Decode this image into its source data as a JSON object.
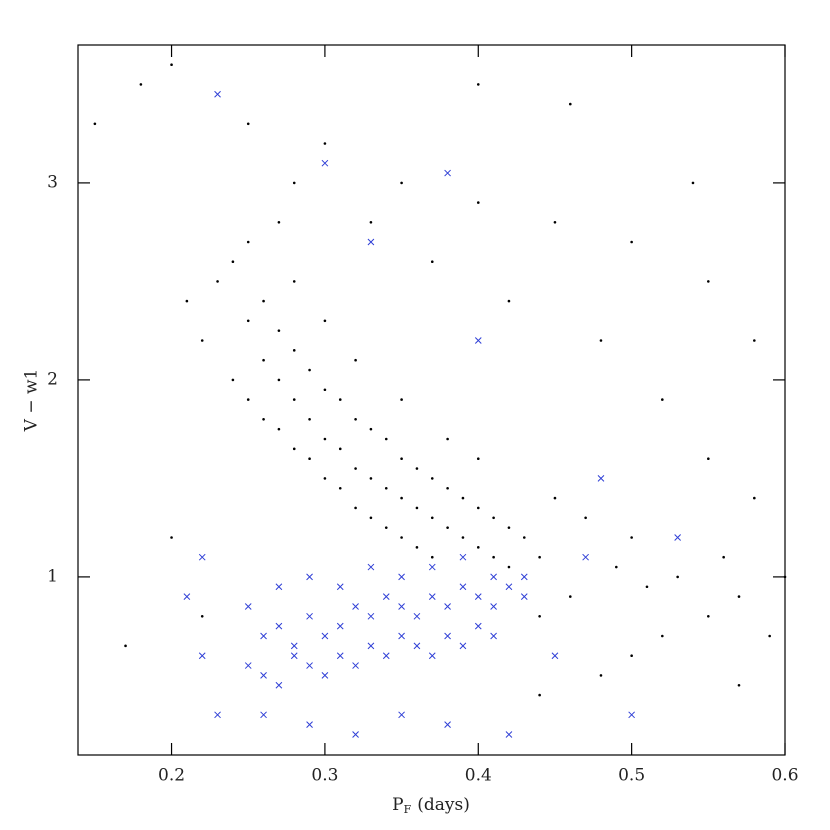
{
  "chart_data": {
    "type": "scatter",
    "x_label": {
      "text": "P",
      "subscript": "F",
      "suffix": "(days)"
    },
    "y_label": "V − w1",
    "xlim": [
      0.139,
      0.6
    ],
    "ylim": [
      0.096,
      3.7
    ],
    "xticks": [
      0.2,
      0.3,
      0.4,
      0.5,
      0.6
    ],
    "yticks": [
      1,
      2,
      3
    ],
    "series": [
      {
        "color": "#000000",
        "marker": "dot",
        "x": [
          0.26,
          0.27,
          0.28,
          0.29,
          0.3,
          0.31,
          0.32,
          0.33,
          0.34,
          0.35,
          0.36,
          0.37,
          0.38,
          0.39,
          0.4,
          0.41,
          0.42,
          0.25,
          0.26,
          0.27,
          0.28,
          0.29,
          0.3,
          0.31,
          0.32,
          0.33,
          0.34,
          0.35,
          0.36,
          0.37,
          0.38,
          0.39,
          0.4,
          0.41,
          0.42,
          0.43,
          0.44,
          0.24,
          0.25,
          0.26,
          0.27,
          0.28,
          0.29,
          0.3,
          0.31,
          0.32,
          0.33,
          0.34,
          0.35,
          0.36,
          0.37,
          0.23,
          0.24,
          0.25,
          0.27,
          0.22,
          0.21,
          0.28,
          0.3,
          0.32,
          0.35,
          0.38,
          0.4,
          0.45,
          0.47,
          0.5,
          0.18,
          0.2,
          0.25,
          0.3,
          0.35,
          0.4,
          0.45,
          0.5,
          0.55,
          0.58,
          0.48,
          0.52,
          0.55,
          0.58,
          0.6,
          0.57,
          0.55,
          0.52,
          0.5,
          0.48,
          0.53,
          0.56,
          0.59,
          0.46,
          0.44,
          0.17,
          0.2,
          0.22,
          0.42,
          0.37,
          0.33,
          0.28,
          0.15,
          0.46,
          0.4,
          0.54,
          0.51,
          0.49,
          0.57,
          0.44
        ],
        "values": [
          2.1,
          2.0,
          1.9,
          1.8,
          1.7,
          1.65,
          1.55,
          1.5,
          1.45,
          1.4,
          1.35,
          1.3,
          1.25,
          1.2,
          1.15,
          1.1,
          1.05,
          2.3,
          2.4,
          2.25,
          2.15,
          2.05,
          1.95,
          1.9,
          1.8,
          1.75,
          1.7,
          1.6,
          1.55,
          1.5,
          1.45,
          1.4,
          1.35,
          1.3,
          1.25,
          1.2,
          1.1,
          2.0,
          1.9,
          1.8,
          1.75,
          1.65,
          1.6,
          1.5,
          1.45,
          1.35,
          1.3,
          1.25,
          1.2,
          1.15,
          1.1,
          2.5,
          2.6,
          2.7,
          2.8,
          2.2,
          2.4,
          2.5,
          2.3,
          2.1,
          1.9,
          1.7,
          1.6,
          1.4,
          1.3,
          1.2,
          3.5,
          3.6,
          3.3,
          3.2,
          3.0,
          2.9,
          2.8,
          2.7,
          2.5,
          2.2,
          2.2,
          1.9,
          1.6,
          1.4,
          1.0,
          0.9,
          0.8,
          0.7,
          0.6,
          0.5,
          1.0,
          1.1,
          0.7,
          0.9,
          0.8,
          0.65,
          1.2,
          0.8,
          2.4,
          2.6,
          2.8,
          3.0,
          3.3,
          3.4,
          3.5,
          3.0,
          0.95,
          1.05,
          0.45,
          0.4
        ]
      },
      {
        "color": "#2f3fd6",
        "marker": "cross",
        "x": [
          0.26,
          0.27,
          0.28,
          0.29,
          0.3,
          0.31,
          0.32,
          0.33,
          0.34,
          0.35,
          0.36,
          0.37,
          0.38,
          0.39,
          0.4,
          0.41,
          0.42,
          0.43,
          0.25,
          0.26,
          0.27,
          0.28,
          0.29,
          0.3,
          0.31,
          0.32,
          0.33,
          0.34,
          0.35,
          0.36,
          0.37,
          0.38,
          0.39,
          0.4,
          0.41,
          0.25,
          0.27,
          0.29,
          0.31,
          0.33,
          0.35,
          0.37,
          0.39,
          0.41,
          0.43,
          0.23,
          0.26,
          0.29,
          0.32,
          0.35,
          0.38,
          0.42,
          0.22,
          0.21,
          0.22,
          0.3,
          0.38,
          0.23,
          0.48,
          0.5,
          0.45,
          0.47,
          0.53,
          0.33,
          0.4
        ],
        "values": [
          0.7,
          0.75,
          0.65,
          0.8,
          0.7,
          0.75,
          0.85,
          0.8,
          0.9,
          0.85,
          0.8,
          0.9,
          0.85,
          0.95,
          0.9,
          0.85,
          0.95,
          0.9,
          0.55,
          0.5,
          0.45,
          0.6,
          0.55,
          0.5,
          0.6,
          0.55,
          0.65,
          0.6,
          0.7,
          0.65,
          0.6,
          0.7,
          0.65,
          0.75,
          0.7,
          0.85,
          0.95,
          1.0,
          0.95,
          1.05,
          1.0,
          1.05,
          1.1,
          1.0,
          1.0,
          0.3,
          0.3,
          0.25,
          0.2,
          0.3,
          0.25,
          0.2,
          0.6,
          0.9,
          1.1,
          3.1,
          3.05,
          3.45,
          1.5,
          0.3,
          0.6,
          1.1,
          1.2,
          2.7,
          2.2
        ]
      }
    ]
  }
}
